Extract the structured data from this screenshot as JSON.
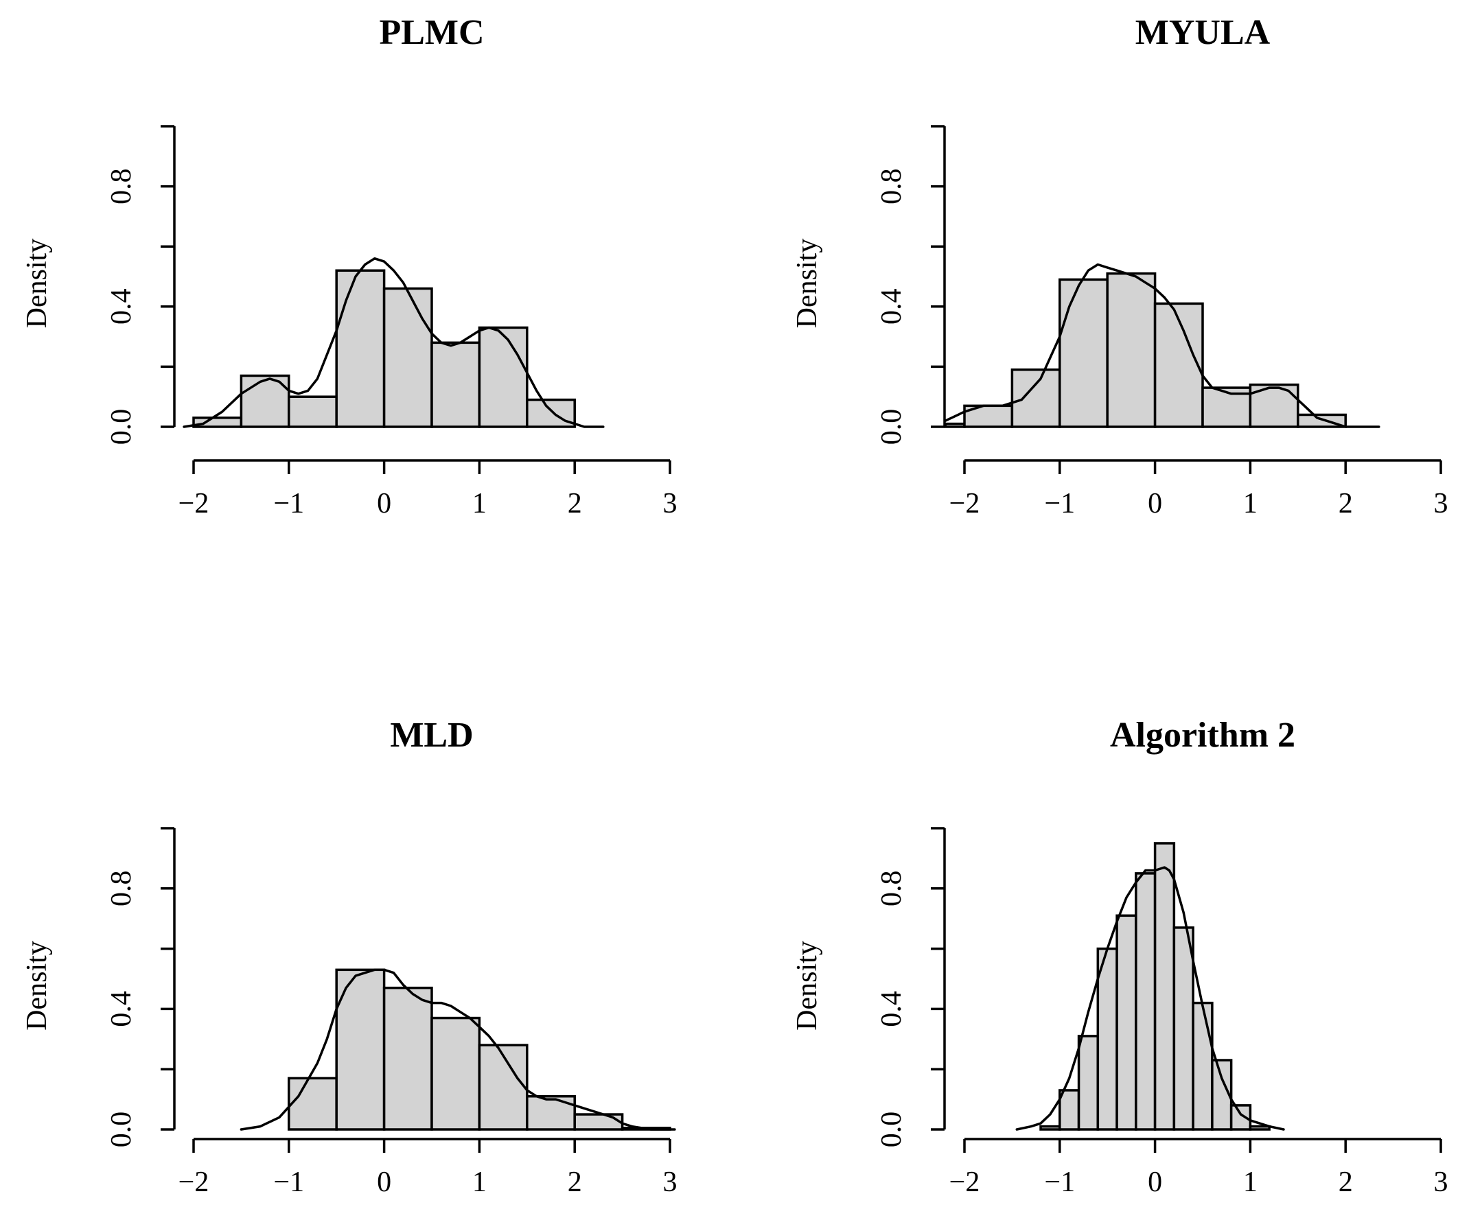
{
  "chart_data": [
    {
      "type": "bar",
      "title": "PLMC",
      "ylabel": "Density",
      "xlim": [
        -2,
        3
      ],
      "ylim": [
        0,
        1
      ],
      "x_ticks": [
        -2,
        -1,
        0,
        1,
        2,
        3
      ],
      "x_tick_labels": [
        "−2",
        "−1",
        "0",
        "1",
        "2",
        "3"
      ],
      "y_ticks": [
        0,
        0.2,
        0.4,
        0.6,
        0.8,
        1.0
      ],
      "y_tick_labels": [
        "0.0",
        "",
        "0.4",
        "",
        "0.8",
        ""
      ],
      "bins": [
        {
          "x0": -2.0,
          "x1": -1.5,
          "value": 0.03
        },
        {
          "x0": -1.5,
          "x1": -1.0,
          "value": 0.17
        },
        {
          "x0": -1.0,
          "x1": -0.5,
          "value": 0.1
        },
        {
          "x0": -0.5,
          "x1": 0.0,
          "value": 0.52
        },
        {
          "x0": 0.0,
          "x1": 0.5,
          "value": 0.46
        },
        {
          "x0": 0.5,
          "x1": 1.0,
          "value": 0.28
        },
        {
          "x0": 1.0,
          "x1": 1.5,
          "value": 0.33
        },
        {
          "x0": 1.5,
          "x1": 2.0,
          "value": 0.09
        }
      ],
      "density_curve": {
        "x": [
          -2.1,
          -1.9,
          -1.7,
          -1.5,
          -1.3,
          -1.2,
          -1.1,
          -1.0,
          -0.9,
          -0.8,
          -0.7,
          -0.6,
          -0.5,
          -0.4,
          -0.3,
          -0.2,
          -0.1,
          0.0,
          0.1,
          0.2,
          0.3,
          0.4,
          0.5,
          0.6,
          0.7,
          0.8,
          0.9,
          1.0,
          1.1,
          1.2,
          1.3,
          1.4,
          1.5,
          1.6,
          1.7,
          1.8,
          1.9,
          2.0,
          2.1,
          2.2,
          2.3
        ],
        "y": [
          0.0,
          0.01,
          0.05,
          0.11,
          0.15,
          0.16,
          0.15,
          0.12,
          0.11,
          0.12,
          0.16,
          0.24,
          0.32,
          0.42,
          0.5,
          0.54,
          0.56,
          0.55,
          0.52,
          0.48,
          0.42,
          0.36,
          0.31,
          0.28,
          0.27,
          0.28,
          0.3,
          0.32,
          0.33,
          0.32,
          0.29,
          0.24,
          0.18,
          0.12,
          0.07,
          0.04,
          0.02,
          0.01,
          0.0,
          0.0,
          0.0
        ]
      }
    },
    {
      "type": "bar",
      "title": "MYULA",
      "ylabel": "Density",
      "xlim": [
        -2,
        3
      ],
      "ylim": [
        0,
        1
      ],
      "x_ticks": [
        -2,
        -1,
        0,
        1,
        2,
        3
      ],
      "x_tick_labels": [
        "−2",
        "−1",
        "0",
        "1",
        "2",
        "3"
      ],
      "y_ticks": [
        0,
        0.2,
        0.4,
        0.6,
        0.8,
        1.0
      ],
      "y_tick_labels": [
        "0.0",
        "",
        "0.4",
        "",
        "0.8",
        ""
      ],
      "bins": [
        {
          "x0": -2.2,
          "x1": -2.0,
          "value": 0.01
        },
        {
          "x0": -2.0,
          "x1": -1.5,
          "value": 0.07
        },
        {
          "x0": -1.5,
          "x1": -1.0,
          "value": 0.19
        },
        {
          "x0": -1.0,
          "x1": -0.5,
          "value": 0.49
        },
        {
          "x0": -0.5,
          "x1": 0.0,
          "value": 0.51
        },
        {
          "x0": 0.0,
          "x1": 0.5,
          "value": 0.41
        },
        {
          "x0": 0.5,
          "x1": 1.0,
          "value": 0.13
        },
        {
          "x0": 1.0,
          "x1": 1.5,
          "value": 0.14
        },
        {
          "x0": 1.5,
          "x1": 2.0,
          "value": 0.04
        }
      ],
      "density_curve": {
        "x": [
          -2.2,
          -2.0,
          -1.8,
          -1.6,
          -1.4,
          -1.2,
          -1.0,
          -0.9,
          -0.8,
          -0.7,
          -0.6,
          -0.5,
          -0.4,
          -0.3,
          -0.2,
          -0.1,
          0.0,
          0.1,
          0.2,
          0.3,
          0.4,
          0.5,
          0.6,
          0.7,
          0.8,
          0.9,
          1.0,
          1.1,
          1.2,
          1.3,
          1.4,
          1.5,
          1.6,
          1.7,
          1.8,
          1.9,
          2.0,
          2.2,
          2.35
        ],
        "y": [
          0.02,
          0.05,
          0.07,
          0.07,
          0.09,
          0.16,
          0.3,
          0.4,
          0.47,
          0.52,
          0.54,
          0.53,
          0.52,
          0.51,
          0.5,
          0.48,
          0.46,
          0.43,
          0.39,
          0.32,
          0.24,
          0.17,
          0.13,
          0.12,
          0.11,
          0.11,
          0.11,
          0.12,
          0.13,
          0.13,
          0.12,
          0.09,
          0.06,
          0.03,
          0.02,
          0.01,
          0.0,
          0.0,
          0.0
        ]
      }
    },
    {
      "type": "bar",
      "title": "MLD",
      "ylabel": "Density",
      "xlim": [
        -2,
        3
      ],
      "ylim": [
        0,
        1
      ],
      "x_ticks": [
        -2,
        -1,
        0,
        1,
        2,
        3
      ],
      "x_tick_labels": [
        "−2",
        "−1",
        "0",
        "1",
        "2",
        "3"
      ],
      "y_ticks": [
        0,
        0.2,
        0.4,
        0.6,
        0.8,
        1.0
      ],
      "y_tick_labels": [
        "0.0",
        "",
        "0.4",
        "",
        "0.8",
        ""
      ],
      "bins": [
        {
          "x0": -1.0,
          "x1": -0.5,
          "value": 0.17
        },
        {
          "x0": -0.5,
          "x1": 0.0,
          "value": 0.53
        },
        {
          "x0": 0.0,
          "x1": 0.5,
          "value": 0.47
        },
        {
          "x0": 0.5,
          "x1": 1.0,
          "value": 0.37
        },
        {
          "x0": 1.0,
          "x1": 1.5,
          "value": 0.28
        },
        {
          "x0": 1.5,
          "x1": 2.0,
          "value": 0.11
        },
        {
          "x0": 2.0,
          "x1": 2.5,
          "value": 0.05
        },
        {
          "x0": 2.5,
          "x1": 3.0,
          "value": 0.005
        }
      ],
      "density_curve": {
        "x": [
          -1.5,
          -1.3,
          -1.1,
          -0.9,
          -0.7,
          -0.6,
          -0.5,
          -0.4,
          -0.3,
          -0.2,
          -0.1,
          0.0,
          0.1,
          0.2,
          0.3,
          0.4,
          0.5,
          0.6,
          0.7,
          0.8,
          0.9,
          1.0,
          1.1,
          1.2,
          1.3,
          1.4,
          1.5,
          1.6,
          1.7,
          1.8,
          1.9,
          2.0,
          2.1,
          2.2,
          2.3,
          2.4,
          2.5,
          2.6,
          2.8,
          3.05
        ],
        "y": [
          0.0,
          0.01,
          0.04,
          0.11,
          0.22,
          0.3,
          0.4,
          0.47,
          0.51,
          0.52,
          0.53,
          0.53,
          0.52,
          0.48,
          0.45,
          0.43,
          0.42,
          0.42,
          0.41,
          0.39,
          0.37,
          0.34,
          0.31,
          0.27,
          0.22,
          0.17,
          0.13,
          0.11,
          0.1,
          0.1,
          0.09,
          0.08,
          0.07,
          0.06,
          0.05,
          0.04,
          0.02,
          0.01,
          0.0,
          0.0
        ]
      }
    },
    {
      "type": "bar",
      "title": "Algorithm 2",
      "ylabel": "Density",
      "xlim": [
        -2,
        3
      ],
      "ylim": [
        0,
        1
      ],
      "x_ticks": [
        -2,
        -1,
        0,
        1,
        2,
        3
      ],
      "x_tick_labels": [
        "−2",
        "−1",
        "0",
        "1",
        "2",
        "3"
      ],
      "y_ticks": [
        0,
        0.2,
        0.4,
        0.6,
        0.8,
        1.0
      ],
      "y_tick_labels": [
        "0.0",
        "",
        "0.4",
        "",
        "0.8",
        ""
      ],
      "bins": [
        {
          "x0": -1.2,
          "x1": -1.0,
          "value": 0.01
        },
        {
          "x0": -1.0,
          "x1": -0.8,
          "value": 0.13
        },
        {
          "x0": -0.8,
          "x1": -0.6,
          "value": 0.31
        },
        {
          "x0": -0.6,
          "x1": -0.4,
          "value": 0.6
        },
        {
          "x0": -0.4,
          "x1": -0.2,
          "value": 0.71
        },
        {
          "x0": -0.2,
          "x1": 0.0,
          "value": 0.85
        },
        {
          "x0": 0.0,
          "x1": 0.2,
          "value": 0.95
        },
        {
          "x0": 0.2,
          "x1": 0.4,
          "value": 0.67
        },
        {
          "x0": 0.4,
          "x1": 0.6,
          "value": 0.42
        },
        {
          "x0": 0.6,
          "x1": 0.8,
          "value": 0.23
        },
        {
          "x0": 0.8,
          "x1": 1.0,
          "value": 0.08
        },
        {
          "x0": 1.0,
          "x1": 1.2,
          "value": 0.01
        }
      ],
      "density_curve": {
        "x": [
          -1.45,
          -1.3,
          -1.2,
          -1.1,
          -1.0,
          -0.9,
          -0.8,
          -0.7,
          -0.6,
          -0.5,
          -0.4,
          -0.3,
          -0.2,
          -0.1,
          0.0,
          0.1,
          0.15,
          0.2,
          0.3,
          0.4,
          0.5,
          0.6,
          0.7,
          0.8,
          0.9,
          1.0,
          1.1,
          1.2,
          1.35
        ],
        "y": [
          0.0,
          0.01,
          0.02,
          0.05,
          0.1,
          0.17,
          0.27,
          0.39,
          0.5,
          0.6,
          0.69,
          0.77,
          0.82,
          0.86,
          0.86,
          0.87,
          0.86,
          0.83,
          0.72,
          0.56,
          0.41,
          0.27,
          0.17,
          0.1,
          0.05,
          0.03,
          0.02,
          0.01,
          0.0
        ]
      }
    }
  ]
}
